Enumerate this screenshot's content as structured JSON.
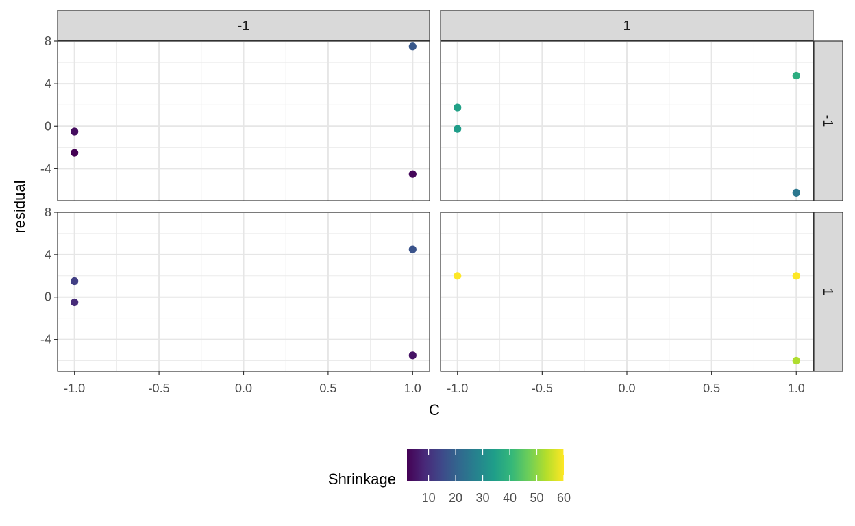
{
  "chart_data": {
    "type": "scatter",
    "xlabel": "C",
    "ylabel": "residual",
    "xlim": [
      -1.1,
      1.1
    ],
    "ylim": [
      -7,
      8
    ],
    "x_ticks": [
      -1.0,
      -0.5,
      0.0,
      0.5,
      1.0
    ],
    "x_tick_labels": [
      "-1.0",
      "-0.5",
      "0.0",
      "0.5",
      "1.0"
    ],
    "y_ticks": [
      -4,
      0,
      4,
      8
    ],
    "y_tick_labels": [
      "-4",
      "0",
      "4",
      "8"
    ],
    "col_facet_labels": [
      "-1",
      "1"
    ],
    "row_facet_labels": [
      "-1",
      "1"
    ],
    "grid": true,
    "panels": [
      {
        "row": 0,
        "col": 0,
        "points": [
          {
            "x": -1,
            "y": -0.5,
            "shrinkage": 4
          },
          {
            "x": -1,
            "y": -2.5,
            "shrinkage": 2
          },
          {
            "x": 1,
            "y": 7.5,
            "shrinkage": 18
          },
          {
            "x": 1,
            "y": -4.5,
            "shrinkage": 3
          }
        ]
      },
      {
        "row": 0,
        "col": 1,
        "points": [
          {
            "x": -1,
            "y": 1.75,
            "shrinkage": 35
          },
          {
            "x": -1,
            "y": -0.25,
            "shrinkage": 34
          },
          {
            "x": 1,
            "y": 4.75,
            "shrinkage": 38
          },
          {
            "x": 1,
            "y": -6.25,
            "shrinkage": 25
          }
        ]
      },
      {
        "row": 1,
        "col": 0,
        "points": [
          {
            "x": -1,
            "y": 1.5,
            "shrinkage": 13
          },
          {
            "x": -1,
            "y": -0.5,
            "shrinkage": 9
          },
          {
            "x": 1,
            "y": 4.5,
            "shrinkage": 17
          },
          {
            "x": 1,
            "y": -5.5,
            "shrinkage": 5
          }
        ]
      },
      {
        "row": 1,
        "col": 1,
        "points": [
          {
            "x": -1,
            "y": 2,
            "shrinkage": 60
          },
          {
            "x": 1,
            "y": 2,
            "shrinkage": 60
          },
          {
            "x": 1,
            "y": -6,
            "shrinkage": 53
          }
        ]
      }
    ],
    "legend": {
      "title": "Shrinkage",
      "position": "bottom",
      "range": [
        2,
        60
      ],
      "ticks": [
        10,
        20,
        30,
        40,
        50,
        60
      ],
      "tick_labels": [
        "10",
        "20",
        "30",
        "40",
        "50",
        "60"
      ],
      "colormap": "viridis",
      "colors": [
        "#440154",
        "#482878",
        "#3e4989",
        "#31688e",
        "#26828e",
        "#1f9e89",
        "#35b779",
        "#6ece58",
        "#b5de2b",
        "#fde725"
      ]
    }
  }
}
